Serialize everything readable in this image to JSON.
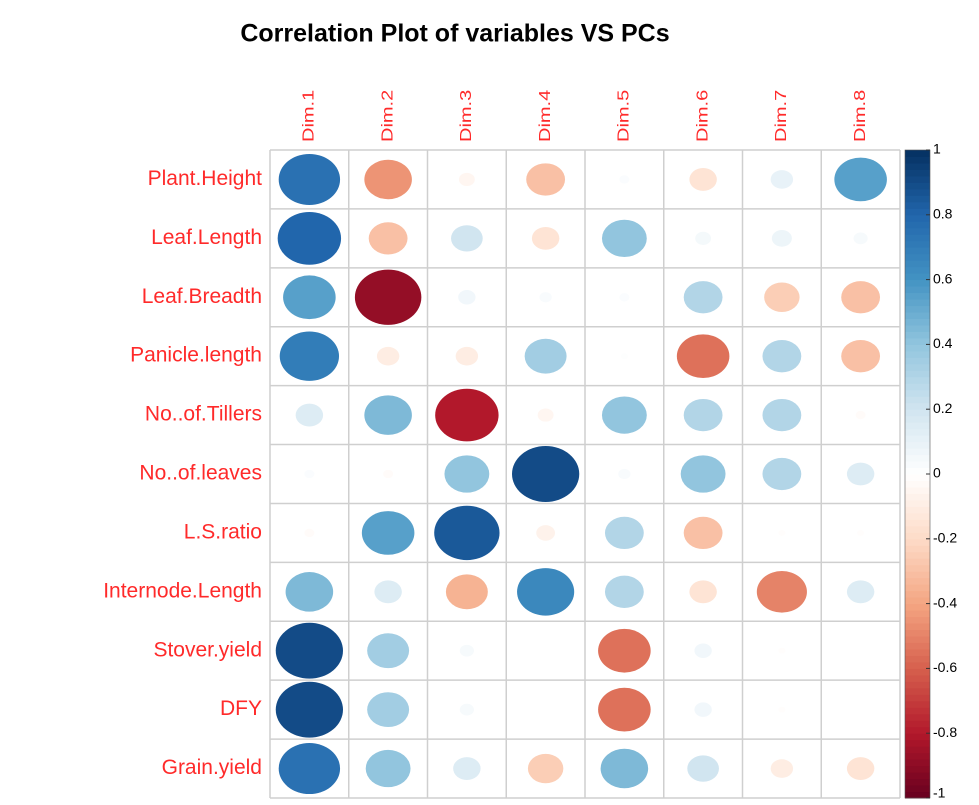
{
  "chart_data": {
    "type": "corrplot",
    "title": "Correlation Plot of variables VS PCs",
    "columns": [
      "Dim.1",
      "Dim.2",
      "Dim.3",
      "Dim.4",
      "Dim.5",
      "Dim.6",
      "Dim.7",
      "Dim.8"
    ],
    "rows": [
      "Plant.Height",
      "Leaf.Length",
      "Leaf.Breadth",
      "Panicle.length",
      "No..of.Tillers",
      "No..of.leaves",
      "L.S.ratio",
      "Internode.Length",
      "Stover.yield",
      "DFY",
      "Grain.yield"
    ],
    "values": [
      [
        0.75,
        -0.45,
        -0.05,
        -0.3,
        0.02,
        -0.15,
        0.1,
        0.55
      ],
      [
        0.8,
        -0.3,
        0.2,
        -0.15,
        0.4,
        0.05,
        0.08,
        0.04
      ],
      [
        0.55,
        -0.88,
        0.06,
        0.03,
        0.02,
        0.3,
        -0.25,
        -0.3
      ],
      [
        0.7,
        -0.1,
        -0.1,
        0.35,
        0.01,
        -0.55,
        0.3,
        -0.3
      ],
      [
        0.15,
        0.45,
        -0.8,
        -0.05,
        0.4,
        0.3,
        0.3,
        -0.02
      ],
      [
        0.02,
        -0.02,
        0.4,
        0.9,
        0.03,
        0.4,
        0.3,
        0.15
      ],
      [
        -0.02,
        0.55,
        0.85,
        -0.07,
        0.3,
        -0.3,
        -0.01,
        -0.01
      ],
      [
        0.45,
        0.15,
        -0.35,
        0.65,
        0.3,
        -0.15,
        -0.5,
        0.15
      ],
      [
        0.9,
        0.35,
        0.04,
        0.0,
        -0.55,
        0.06,
        -0.01,
        0.0
      ],
      [
        0.9,
        0.35,
        0.04,
        0.0,
        -0.55,
        0.06,
        -0.01,
        0.0
      ],
      [
        0.75,
        0.4,
        0.15,
        -0.25,
        0.45,
        0.2,
        -0.1,
        -0.15
      ]
    ],
    "zlim": [
      -1,
      1
    ],
    "colorbar_ticks": [
      1,
      0.8,
      0.6,
      0.4,
      0.2,
      0,
      -0.2,
      -0.4,
      -0.6,
      -0.8,
      -1
    ],
    "colormap": [
      "#67001f",
      "#b2182b",
      "#d6604d",
      "#f4a582",
      "#fddbc7",
      "#ffffff",
      "#d1e5f0",
      "#92c5de",
      "#4393c3",
      "#2166ac",
      "#053061"
    ],
    "label_color": "#ff2a2a"
  }
}
